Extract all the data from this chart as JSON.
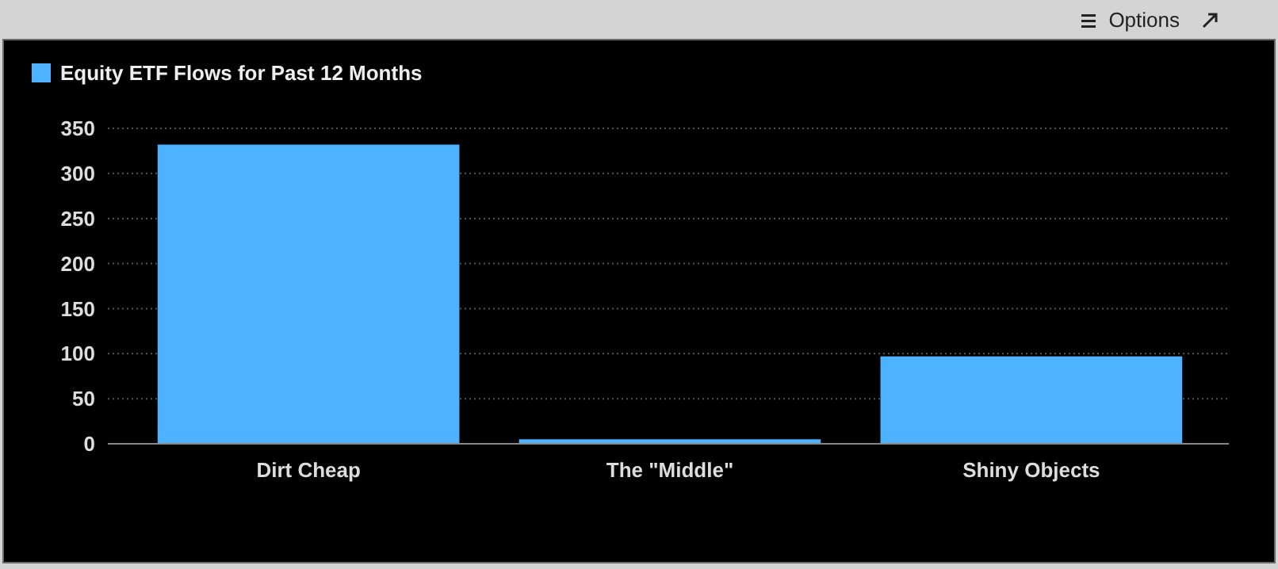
{
  "chart_data": {
    "type": "bar",
    "categories": [
      "Dirt Cheap",
      "The \"Middle\"",
      "Shiny Objects"
    ],
    "series": [
      {
        "name": "Equity ETF Flows for Past 12 Months",
        "color": "#4db2ff",
        "values": [
          332,
          5,
          97
        ]
      }
    ],
    "ylim": [
      0,
      350
    ],
    "yticks": [
      0,
      50,
      100,
      150,
      200,
      250,
      300,
      350
    ],
    "grid": "y",
    "legend": "top left",
    "annotations": [
      "Options"
    ]
  }
}
